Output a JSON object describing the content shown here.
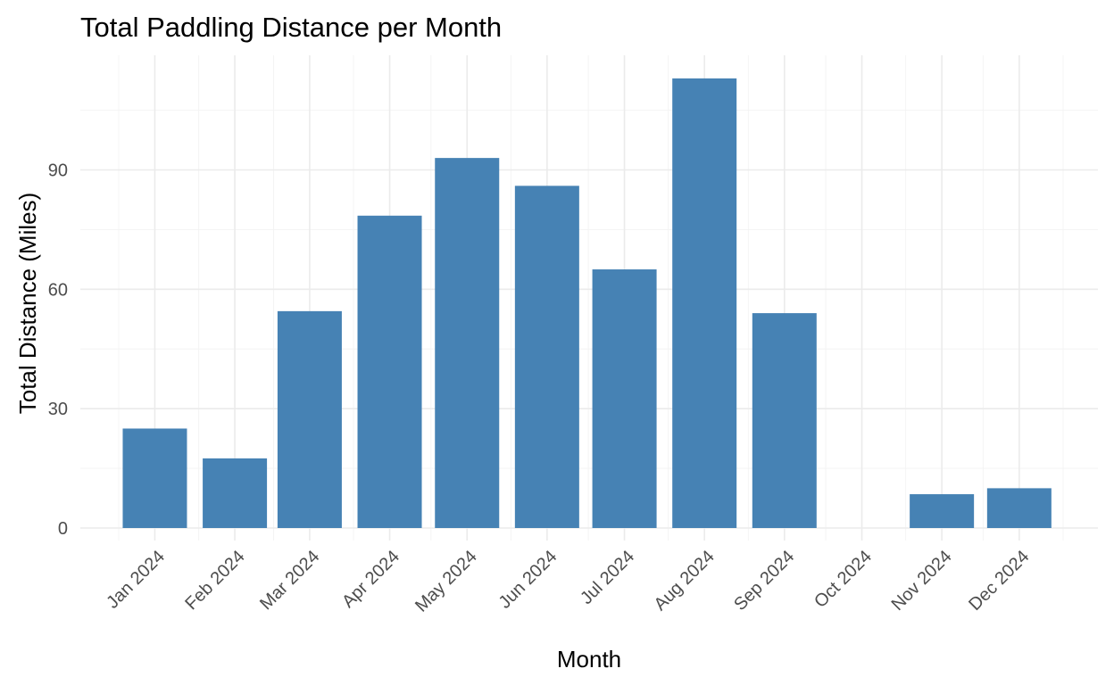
{
  "chart_data": {
    "type": "bar",
    "title": "Total Paddling Distance per Month",
    "xlabel": "Month",
    "ylabel": "Total Distance (Miles)",
    "categories": [
      "Jan 2024",
      "Feb 2024",
      "Mar 2024",
      "Apr 2024",
      "May 2024",
      "Jun 2024",
      "Jul 2024",
      "Aug 2024",
      "Sep 2024",
      "Oct 2024",
      "Nov 2024",
      "Dec 2024"
    ],
    "x_dates": [
      "2024-01-15",
      "2024-02-15",
      "2024-03-15",
      "2024-04-15",
      "2024-05-15",
      "2024-06-15",
      "2024-07-15",
      "2024-08-15",
      "2024-09-15",
      "2024-10-15",
      "2024-11-15",
      "2024-12-15"
    ],
    "values": [
      25,
      17.5,
      54.5,
      78.5,
      93,
      86,
      65,
      113,
      54,
      0,
      8.5,
      10
    ],
    "y_ticks": [
      0,
      30,
      60,
      90
    ],
    "ylim": [
      -5.5,
      118.5
    ],
    "grid": true,
    "bar_color": "#4682B4"
  }
}
